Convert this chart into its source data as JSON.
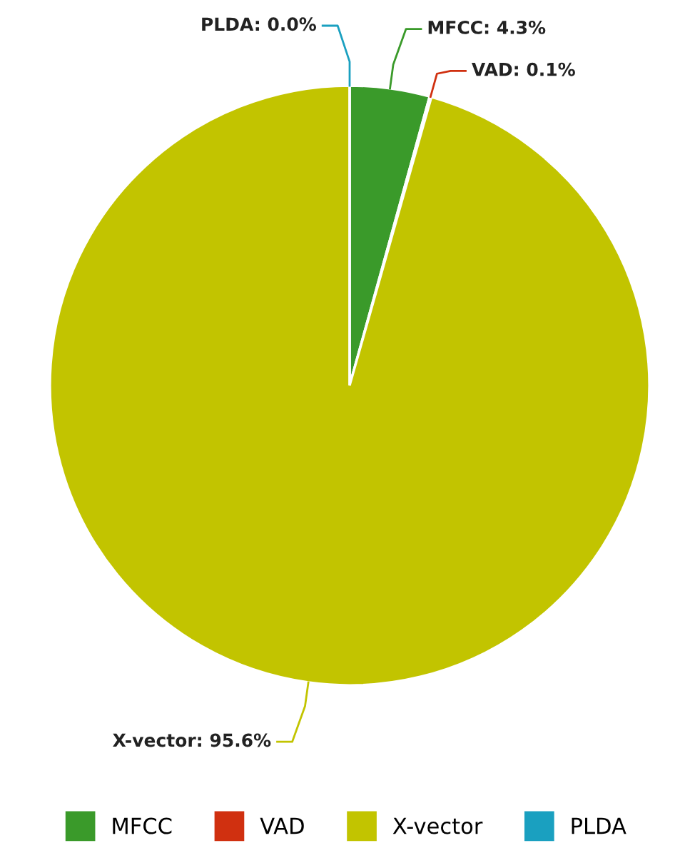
{
  "chart_data": {
    "type": "pie",
    "categories": [
      "MFCC",
      "VAD",
      "X-vector",
      "PLDA"
    ],
    "values": [
      4.3,
      0.1,
      95.6,
      0.0
    ],
    "colors": [
      "#3a9a2a",
      "#d03010",
      "#c2c400",
      "#1aa0c0"
    ],
    "value_labels": [
      "MFCC: 4.3%",
      "VAD: 0.1%",
      "X-vector: 95.6%",
      "PLDA: 0.0%"
    ],
    "legend": "bottom"
  }
}
